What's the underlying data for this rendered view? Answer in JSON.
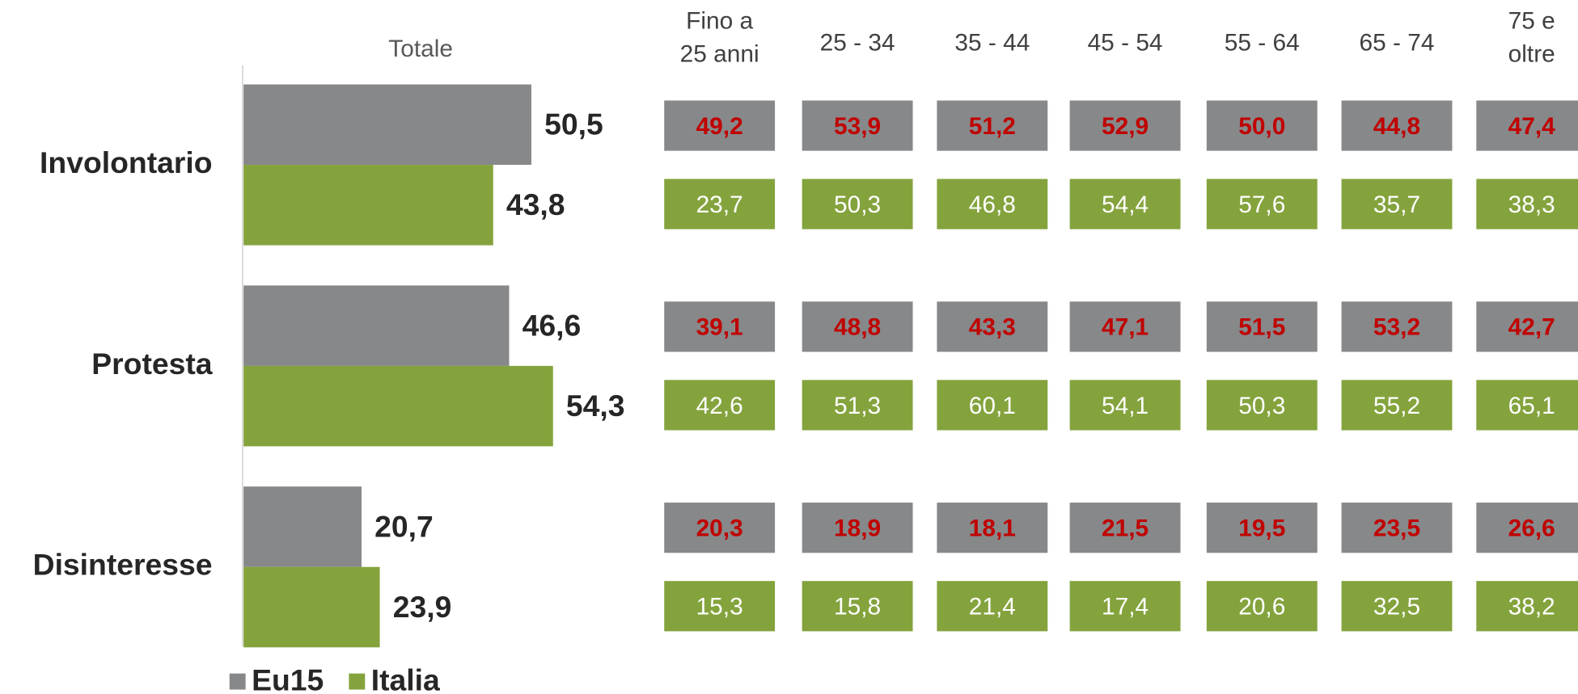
{
  "chart_data": {
    "type": "barh",
    "column_title": "Totale",
    "categories": [
      "Involontario",
      "Protesta",
      "Disinteresse"
    ],
    "series": [
      {
        "name": "Eu15",
        "color": "#87888a",
        "values": [
          50.5,
          46.6,
          20.7
        ],
        "value_labels": [
          "50,5",
          "46,6",
          "20,7"
        ]
      },
      {
        "name": "Italia",
        "color": "#84a33d",
        "values": [
          43.8,
          54.3,
          23.9
        ],
        "value_labels": [
          "43,8",
          "54,3",
          "23,9"
        ]
      }
    ]
  },
  "age_table": {
    "columns": [
      [
        "Fino a",
        "25 anni"
      ],
      [
        "25 - 34"
      ],
      [
        "35 - 44"
      ],
      [
        "45 - 54"
      ],
      [
        "55 - 64"
      ],
      [
        "65 - 74"
      ],
      [
        "75 e",
        "oltre"
      ]
    ],
    "rows": [
      {
        "eu15": [
          "49,2",
          "53,9",
          "51,2",
          "52,9",
          "50,0",
          "44,8",
          "47,4"
        ],
        "italia": [
          "23,7",
          "50,3",
          "46,8",
          "54,4",
          "57,6",
          "35,7",
          "38,3"
        ]
      },
      {
        "eu15": [
          "39,1",
          "48,8",
          "43,3",
          "47,1",
          "51,5",
          "53,2",
          "42,7"
        ],
        "italia": [
          "42,6",
          "51,3",
          "60,1",
          "54,1",
          "50,3",
          "55,2",
          "65,1"
        ]
      },
      {
        "eu15": [
          "20,3",
          "18,9",
          "18,1",
          "21,5",
          "19,5",
          "23,5",
          "26,6"
        ],
        "italia": [
          "15,3",
          "15,8",
          "21,4",
          "17,4",
          "20,6",
          "32,5",
          "38,2"
        ]
      }
    ]
  }
}
